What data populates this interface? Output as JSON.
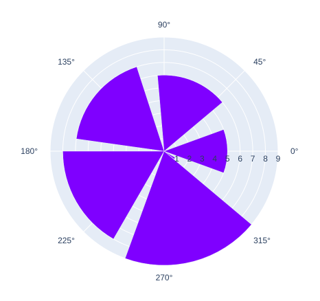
{
  "chart_data": {
    "type": "barpolar",
    "radial_axis": {
      "range": [
        0,
        9
      ],
      "tick_labels": [
        "1",
        "2",
        "3",
        "4",
        "5",
        "6",
        "7",
        "8",
        "9"
      ]
    },
    "angular_axis": {
      "tick_labels": [
        "0°",
        "45°",
        "90°",
        "135°",
        "180°",
        "225°",
        "270°",
        "315°"
      ]
    },
    "bars": [
      {
        "theta_start": -20,
        "theta_end": 20,
        "r": 5
      },
      {
        "theta_start": 40,
        "theta_end": 95,
        "r": 6
      },
      {
        "theta_start": 108,
        "theta_end": 172,
        "r": 7
      },
      {
        "theta_start": 180,
        "theta_end": 240,
        "r": 8
      },
      {
        "theta_start": 250,
        "theta_end": 320,
        "r": 9
      },
      {
        "theta_start": 322,
        "theta_end": 330,
        "r": 1
      }
    ],
    "colors": {
      "bar": "#7f00ff",
      "polar_bg": "#e5ecf6",
      "grid": "#ffffff",
      "text": "#2a3f5f"
    },
    "legend": "none",
    "grid": true
  }
}
